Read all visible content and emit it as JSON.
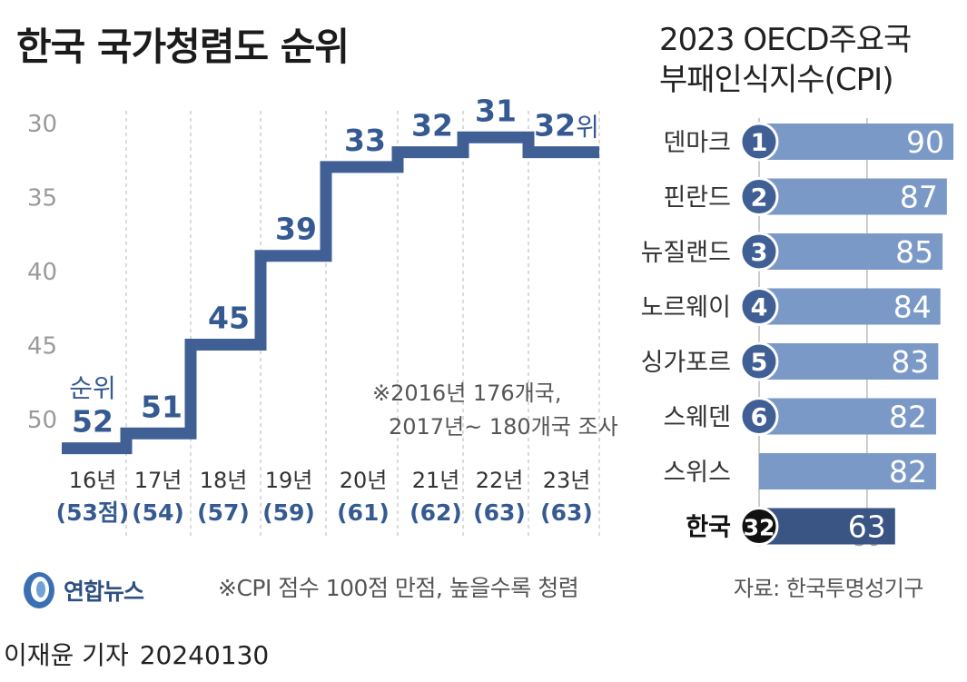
{
  "title": "한국 국가청렴도 순위",
  "chart_data": [
    {
      "type": "line",
      "step": true,
      "title": "한국 국가청렴도 순위",
      "y_axis_reversed": true,
      "ylim": [
        30,
        53
      ],
      "yticks": [
        30,
        35,
        40,
        45,
        50
      ],
      "categories": [
        "16년",
        "17년",
        "18년",
        "19년",
        "20년",
        "21년",
        "22년",
        "23년"
      ],
      "scores": [
        "(53점)",
        "(54)",
        "(57)",
        "(59)",
        "(61)",
        "(62)",
        "(63)",
        "(63)"
      ],
      "values": [
        52,
        51,
        45,
        39,
        33,
        32,
        31,
        32
      ],
      "value_labels": [
        "52",
        "51",
        "45",
        "39",
        "33",
        "32",
        "31",
        "32위"
      ],
      "series_label": "순위",
      "note_lines": [
        "※2016년 176개국,",
        "2017년~ 180개국 조사"
      ],
      "grid": "vertical dashed",
      "line_color": "#3f5f95",
      "label_color": "#355a92"
    },
    {
      "type": "bar",
      "orientation": "horizontal",
      "title": "2023 OECD주요국 부패인식지수(CPI)",
      "title_lines": [
        "2023 OECD주요국",
        "부패인식지수(CPI)"
      ],
      "categories": [
        "덴마크",
        "핀란드",
        "뉴질랜드",
        "노르웨이",
        "싱가포르",
        "스웨덴",
        "스위스",
        "한국"
      ],
      "ranks": [
        "1",
        "2",
        "3",
        "4",
        "5",
        "6",
        "",
        "32"
      ],
      "values": [
        90,
        87,
        85,
        84,
        83,
        82,
        82,
        63
      ],
      "xticks": [
        0,
        50
      ],
      "xlim": [
        0,
        90
      ],
      "highlight": "한국",
      "bar_color": "#7b99c7",
      "highlight_color": "#3a5584",
      "rank_circle_color": "#3f5f95"
    }
  ],
  "logo": {
    "text": "연합뉴스",
    "icon": "yonhap-logo-icon"
  },
  "footnote": "※CPI 점수 100점 만점, 높을수록 청렴",
  "source": "자료: 한국투명성기구",
  "reporter": {
    "name": "이재윤 기자",
    "date": "20240130"
  }
}
